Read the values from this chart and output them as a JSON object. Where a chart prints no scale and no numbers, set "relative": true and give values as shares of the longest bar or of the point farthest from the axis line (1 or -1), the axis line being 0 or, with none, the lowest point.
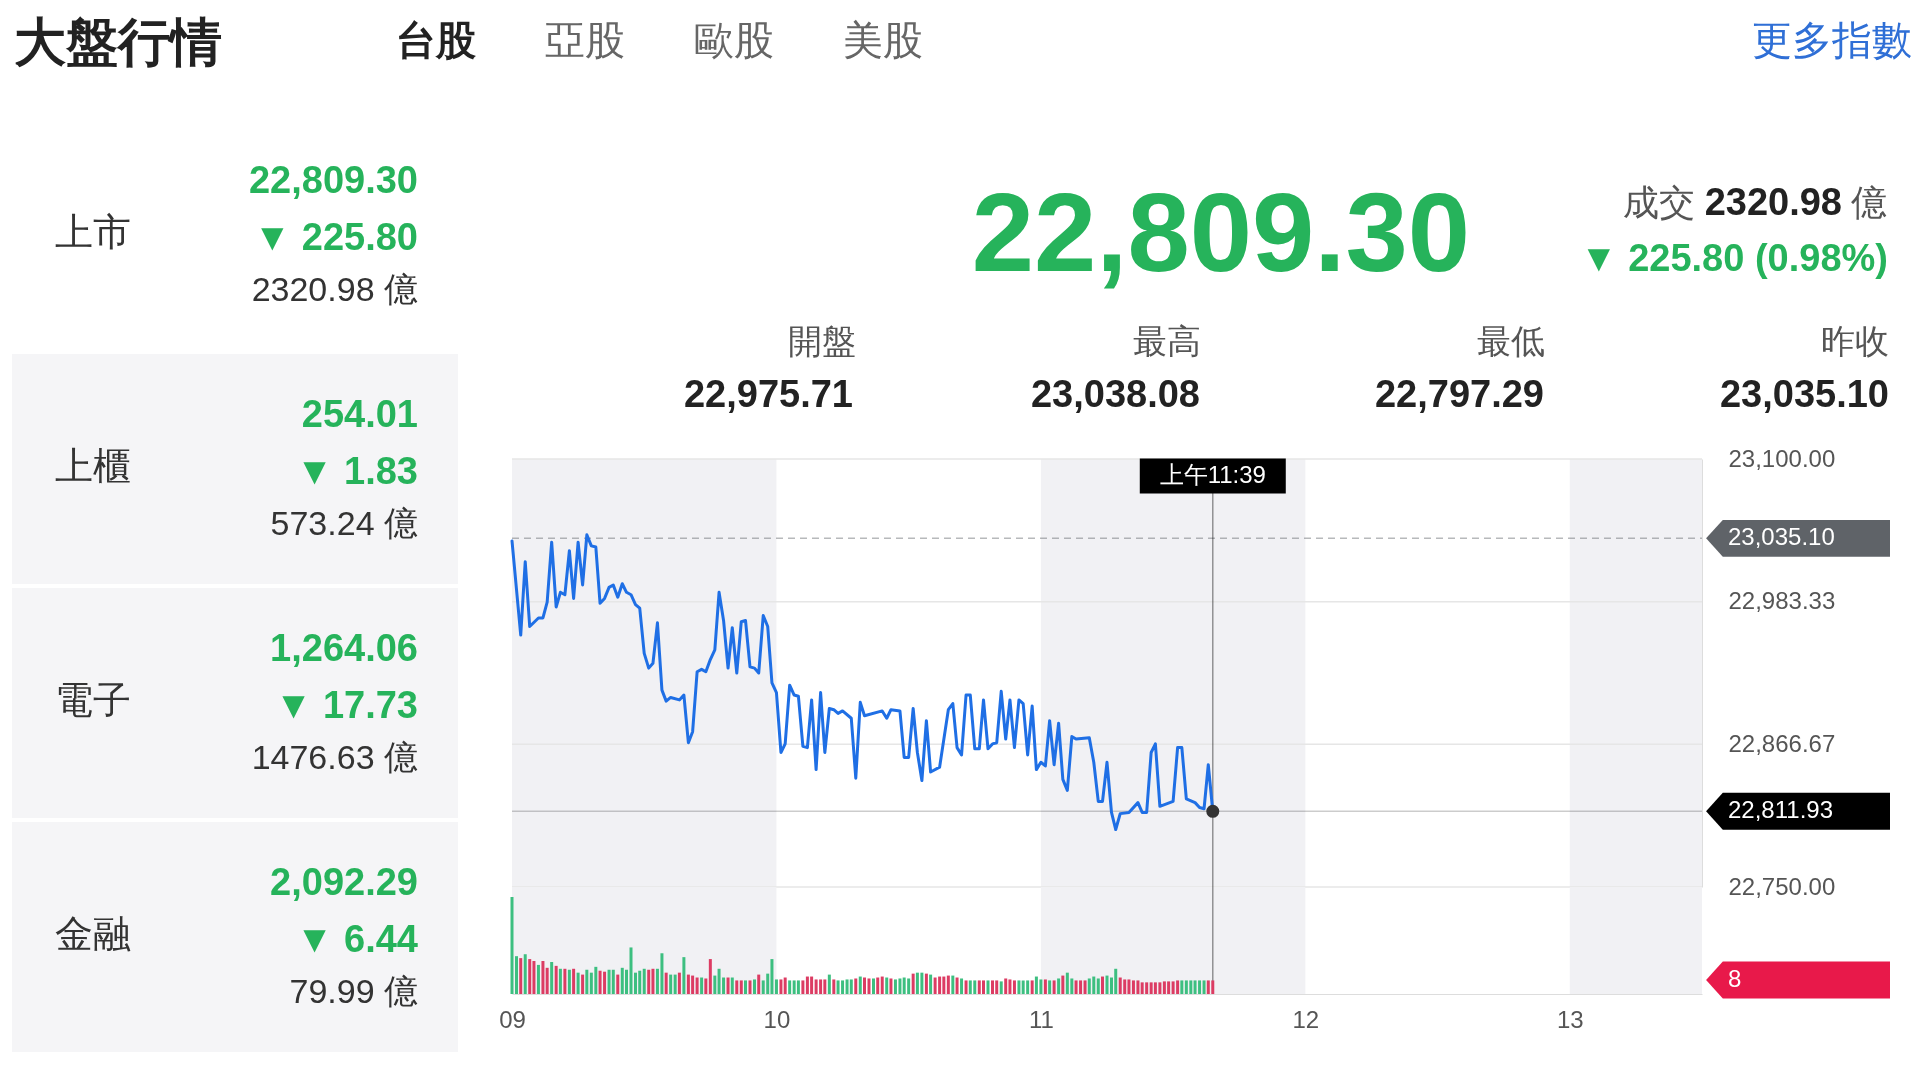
{
  "chart_data": [
    {
      "type": "other",
      "title": "大盤行情",
      "annotations": [
        "台股",
        "亞股",
        "歐股",
        "美股",
        "更多指數"
      ]
    },
    {
      "type": "other",
      "annotations": [
        "上市",
        "22,809.30",
        "▼ 225.80",
        "2320.98 億",
        "上櫃",
        "254.01",
        "▼ 1.83",
        "573.24 億",
        "電子",
        "1,264.06",
        "▼ 17.73",
        "1476.63 億",
        "金融",
        "2,092.29",
        "▼ 6.44",
        "79.99 億"
      ]
    },
    {
      "type": "other",
      "annotations": [
        "22,809.30",
        "成交",
        "2320.98",
        "億",
        "▼ 225.80 (0.98%)",
        "開盤",
        "最高",
        "最低",
        "昨收",
        "22,975.71",
        "23,038.08",
        "22,797.29",
        "23,035.10"
      ]
    },
    {
      "type": "line",
      "xlim": [
        9,
        13.5
      ],
      "ylim": [
        22750,
        23100
      ],
      "yticks": [
        {
          "value": 23100,
          "label": "23,100.00"
        },
        {
          "value": 22983.33,
          "label": "22,983.33"
        },
        {
          "value": 22866.67,
          "label": "22,866.67"
        },
        {
          "value": 22750,
          "label": "22,750.00"
        }
      ],
      "tick_labels": "y",
      "grid": "y",
      "bands": [
        {
          "axis": "x",
          "from": 9,
          "to": 10,
          "color": "#f1f1f4"
        },
        {
          "axis": "x",
          "from": 11,
          "to": 12,
          "color": "#f1f1f4"
        },
        {
          "axis": "x",
          "from": 13,
          "to": 13.5,
          "color": "#f1f1f4"
        }
      ],
      "ref_lines": [
        {
          "axis": "y",
          "value": 23035.1,
          "label": "23,035.10",
          "color": "#5f6368",
          "line_style": "dashed"
        },
        {
          "axis": "y",
          "value": 22811.93,
          "label": "22,811.93",
          "color": "#000000"
        },
        {
          "axis": "x",
          "value": 11.65,
          "color": "#000000"
        }
      ],
      "annotations": [
        {
          "text": "上午11:39",
          "x": 11.65
        }
      ],
      "series": [
        {
          "color": "#1f6fe5",
          "x": [
            9.0,
            9.033,
            9.05,
            9.067,
            9.1,
            9.117,
            9.133,
            9.15,
            9.167,
            9.183,
            9.2,
            9.217,
            9.233,
            9.25,
            9.267,
            9.283,
            9.3,
            9.317,
            9.333,
            9.35,
            9.367,
            9.383,
            9.4,
            9.417,
            9.433,
            9.45,
            9.467,
            9.483,
            9.5,
            9.517,
            9.533,
            9.55,
            9.567,
            9.583,
            9.6,
            9.633,
            9.65,
            9.667,
            9.683,
            9.7,
            9.717,
            9.733,
            9.75,
            9.767,
            9.783,
            9.8,
            9.817,
            9.833,
            9.85,
            9.867,
            9.883,
            9.9,
            9.917,
            9.933,
            9.95,
            9.967,
            9.983,
            10.0,
            10.017,
            10.033,
            10.05,
            10.067,
            10.083,
            10.1,
            10.117,
            10.133,
            10.15,
            10.167,
            10.183,
            10.2,
            10.217,
            10.233,
            10.25,
            10.283,
            10.3,
            10.317,
            10.333,
            10.4,
            10.417,
            10.433,
            10.467,
            10.483,
            10.5,
            10.517,
            10.533,
            10.55,
            10.567,
            10.583,
            10.617,
            10.65,
            10.667,
            10.683,
            10.7,
            10.717,
            10.733,
            10.75,
            10.767,
            10.783,
            10.8,
            10.817,
            10.833,
            10.85,
            10.867,
            10.883,
            10.9,
            10.917,
            10.933,
            10.95,
            10.967,
            10.983,
            11.0,
            11.017,
            11.033,
            11.05,
            11.067,
            11.083,
            11.1,
            11.117,
            11.133,
            11.183,
            11.2,
            11.217,
            11.233,
            11.25,
            11.267,
            11.283,
            11.3,
            11.333,
            11.367,
            11.383,
            11.4,
            11.417,
            11.433,
            11.45,
            11.5,
            11.517,
            11.533,
            11.55,
            11.583,
            11.6,
            11.617,
            11.633,
            11.65
          ],
          "values": [
            23033,
            22956,
            23016,
            22963,
            22970,
            22970,
            22983,
            23032,
            22979,
            22991,
            22989,
            23025,
            22986,
            23032,
            22997,
            23038,
            23029,
            23028,
            22982,
            22986,
            22995,
            22997,
            22987,
            22998,
            22991,
            22989,
            22981,
            22978,
            22941,
            22929,
            22933,
            22966,
            22911,
            22902,
            22905,
            22903,
            22907,
            22868,
            22877,
            22926,
            22928,
            22926,
            22936,
            22944,
            22991,
            22968,
            22929,
            22962,
            22925,
            22967,
            22968,
            22930,
            22929,
            22925,
            22972,
            22963,
            22917,
            22909,
            22860,
            22867,
            22915,
            22907,
            22906,
            22865,
            22864,
            22903,
            22846,
            22909,
            22860,
            22896,
            22895,
            22892,
            22894,
            22888,
            22839,
            22901,
            22890,
            22894,
            22888,
            22895,
            22894,
            22856,
            22856,
            22896,
            22860,
            22837,
            22886,
            22844,
            22848,
            22895,
            22900,
            22864,
            22858,
            22907,
            22907,
            22863,
            22863,
            22903,
            22863,
            22867,
            22868,
            22910,
            22871,
            22903,
            22864,
            22903,
            22900,
            22858,
            22898,
            22846,
            22852,
            22849,
            22886,
            22850,
            22884,
            22838,
            22829,
            22873,
            22871,
            22872,
            22852,
            22820,
            22820,
            22852,
            22811,
            22797,
            22810,
            22811,
            22819,
            22811,
            22811,
            22860,
            22867,
            22816,
            22820,
            22864,
            22864,
            22822,
            22819,
            22815,
            22814,
            22850,
            22811.93
          ]
        },
        {
          "type": "scatter",
          "color": "#333333",
          "x": [
            11.65
          ],
          "values": [
            22811.93
          ]
        }
      ]
    },
    {
      "type": "bar",
      "relative": true,
      "xlim": [
        9,
        13.5
      ],
      "xticks": [
        {
          "value": 9,
          "label": "09"
        },
        10,
        11,
        12,
        13
      ],
      "tick_labels": "x",
      "bands": [
        {
          "axis": "x",
          "from": 9,
          "to": 10,
          "color": "#f1f1f4"
        },
        {
          "axis": "x",
          "from": 11,
          "to": 12,
          "color": "#f1f1f4"
        },
        {
          "axis": "x",
          "from": 13,
          "to": 13.5,
          "color": "#f1f1f4"
        }
      ],
      "ref_lines": [
        {
          "axis": "x",
          "value": 11.65,
          "color": "#000000"
        }
      ],
      "annotations": [
        "8"
      ],
      "x": [
        9.0,
        9.017,
        9.033,
        9.05,
        9.067,
        9.083,
        9.1,
        9.117,
        9.133,
        9.15,
        9.167,
        9.183,
        9.2,
        9.217,
        9.233,
        9.25,
        9.267,
        9.283,
        9.3,
        9.317,
        9.333,
        9.35,
        9.367,
        9.383,
        9.4,
        9.417,
        9.433,
        9.45,
        9.467,
        9.483,
        9.5,
        9.517,
        9.533,
        9.55,
        9.567,
        9.583,
        9.6,
        9.617,
        9.633,
        9.65,
        9.667,
        9.683,
        9.7,
        9.717,
        9.733,
        9.75,
        9.767,
        9.783,
        9.8,
        9.817,
        9.833,
        9.85,
        9.867,
        9.883,
        9.9,
        9.917,
        9.933,
        9.95,
        9.967,
        9.983,
        10.0,
        10.017,
        10.033,
        10.05,
        10.067,
        10.083,
        10.1,
        10.117,
        10.133,
        10.15,
        10.167,
        10.183,
        10.2,
        10.217,
        10.233,
        10.25,
        10.267,
        10.283,
        10.3,
        10.317,
        10.333,
        10.35,
        10.367,
        10.383,
        10.4,
        10.417,
        10.433,
        10.45,
        10.467,
        10.483,
        10.5,
        10.517,
        10.533,
        10.55,
        10.567,
        10.583,
        10.6,
        10.617,
        10.633,
        10.65,
        10.667,
        10.683,
        10.7,
        10.717,
        10.733,
        10.75,
        10.767,
        10.783,
        10.8,
        10.817,
        10.833,
        10.85,
        10.867,
        10.883,
        10.9,
        10.917,
        10.933,
        10.95,
        10.967,
        10.983,
        11.0,
        11.017,
        11.033,
        11.05,
        11.067,
        11.083,
        11.1,
        11.117,
        11.133,
        11.15,
        11.167,
        11.183,
        11.2,
        11.217,
        11.233,
        11.25,
        11.267,
        11.283,
        11.3,
        11.317,
        11.333,
        11.35,
        11.367,
        11.383,
        11.4,
        11.417,
        11.433,
        11.45,
        11.467,
        11.483,
        11.5,
        11.517,
        11.533,
        11.55,
        11.567,
        11.583,
        11.6,
        11.617,
        11.633,
        11.65
      ],
      "values": [
        1,
        0.39,
        0.37,
        0.41,
        0.36,
        0.34,
        0.3,
        0.34,
        0.27,
        0.33,
        0.29,
        0.26,
        0.26,
        0.25,
        0.26,
        0.22,
        0.2,
        0.25,
        0.22,
        0.28,
        0.24,
        0.23,
        0.25,
        0.25,
        0.2,
        0.27,
        0.25,
        0.48,
        0.22,
        0.24,
        0.26,
        0.25,
        0.26,
        0.26,
        0.42,
        0.22,
        0.2,
        0.2,
        0.22,
        0.38,
        0.2,
        0.19,
        0.17,
        0.17,
        0.16,
        0.36,
        0.19,
        0.26,
        0.17,
        0.17,
        0.17,
        0.14,
        0.14,
        0.14,
        0.14,
        0.15,
        0.2,
        0.14,
        0.21,
        0.36,
        0.15,
        0.15,
        0.17,
        0.14,
        0.14,
        0.14,
        0.14,
        0.18,
        0.18,
        0.15,
        0.15,
        0.15,
        0.2,
        0.15,
        0.14,
        0.14,
        0.15,
        0.15,
        0.16,
        0.18,
        0.17,
        0.16,
        0.16,
        0.17,
        0.18,
        0.17,
        0.16,
        0.15,
        0.16,
        0.17,
        0.16,
        0.21,
        0.22,
        0.22,
        0.21,
        0.2,
        0.17,
        0.18,
        0.18,
        0.19,
        0.19,
        0.17,
        0.16,
        0.14,
        0.14,
        0.14,
        0.14,
        0.14,
        0.14,
        0.14,
        0.14,
        0.13,
        0.16,
        0.15,
        0.14,
        0.14,
        0.14,
        0.14,
        0.14,
        0.18,
        0.15,
        0.15,
        0.14,
        0.14,
        0.16,
        0.19,
        0.22,
        0.16,
        0.14,
        0.14,
        0.14,
        0.16,
        0.18,
        0.16,
        0.18,
        0.19,
        0.17,
        0.26,
        0.17,
        0.15,
        0.15,
        0.14,
        0.14,
        0.12,
        0.12,
        0.12,
        0.12,
        0.12,
        0.13,
        0.13,
        0.13,
        0.14,
        0.14,
        0.14,
        0.14,
        0.14,
        0.14,
        0.14,
        0.14,
        0.14
      ],
      "colors": [
        "#3dbf80",
        "#3dbf80",
        "#dc3c63",
        "#3dbf80",
        "#dc3c63",
        "#dc3c63",
        "#3dbf80",
        "#dc3c63",
        "#dc3c63",
        "#3dbf80",
        "#dc3c63",
        "#3dbf80",
        "#dc3c63",
        "#3dbf80",
        "#dc3c63",
        "#3dbf80",
        "#dc3c63",
        "#3dbf80",
        "#3dbf80",
        "#3dbf80",
        "#dc3c63",
        "#dc3c63",
        "#3dbf80",
        "#3dbf80",
        "#dc3c63",
        "#3dbf80",
        "#3dbf80",
        "#3dbf80",
        "#3dbf80",
        "#3dbf80",
        "#3dbf80",
        "#dc3c63",
        "#dc3c63",
        "#3dbf80",
        "#3dbf80",
        "#dc3c63",
        "#3dbf80",
        "#3dbf80",
        "#dc3c63",
        "#3dbf80",
        "#dc3c63",
        "#dc3c63",
        "#dc3c63",
        "#3dbf80",
        "#dc3c63",
        "#dc3c63",
        "#3dbf80",
        "#3dbf80",
        "#3dbf80",
        "#dc3c63",
        "#3dbf80",
        "#dc3c63",
        "#dc3c63",
        "#3dbf80",
        "#dc3c63",
        "#3dbf80",
        "#dc3c63",
        "#3dbf80",
        "#3dbf80",
        "#3dbf80",
        "#3dbf80",
        "#dc3c63",
        "#dc3c63",
        "#3dbf80",
        "#3dbf80",
        "#3dbf80",
        "#dc3c63",
        "#dc3c63",
        "#dc3c63",
        "#dc3c63",
        "#dc3c63",
        "#dc3c63",
        "#3dbf80",
        "#dc3c63",
        "#3dbf80",
        "#3dbf80",
        "#3dbf80",
        "#3dbf80",
        "#dc3c63",
        "#3dbf80",
        "#dc3c63",
        "#dc3c63",
        "#3dbf80",
        "#dc3c63",
        "#dc3c63",
        "#3dbf80",
        "#dc3c63",
        "#3dbf80",
        "#3dbf80",
        "#3dbf80",
        "#3dbf80",
        "#dc3c63",
        "#3dbf80",
        "#3dbf80",
        "#dc3c63",
        "#3dbf80",
        "#dc3c63",
        "#dc3c63",
        "#dc3c63",
        "#dc3c63",
        "#3dbf80",
        "#dc3c63",
        "#3dbf80",
        "#dc3c63",
        "#3dbf80",
        "#3dbf80",
        "#dc3c63",
        "#dc3c63",
        "#3dbf80",
        "#dc3c63",
        "#dc3c63",
        "#3dbf80",
        "#dc3c63",
        "#dc3c63",
        "#dc3c63",
        "#3dbf80",
        "#3dbf80",
        "#3dbf80",
        "#dc3c63",
        "#3dbf80",
        "#3dbf80",
        "#dc3c63",
        "#3dbf80",
        "#dc3c63",
        "#3dbf80",
        "#dc3c63",
        "#3dbf80",
        "#3dbf80",
        "#dc3c63",
        "#dc3c63",
        "#dc3c63",
        "#3dbf80",
        "#3dbf80",
        "#3dbf80",
        "#dc3c63",
        "#3dbf80",
        "#3dbf80",
        "#3dbf80",
        "#dc3c63",
        "#dc3c63",
        "#dc3c63",
        "#dc3c63",
        "#dc3c63",
        "#dc3c63",
        "#dc3c63",
        "#dc3c63",
        "#dc3c63",
        "#dc3c63",
        "#dc3c63",
        "#dc3c63",
        "#dc3c63",
        "#dc3c63",
        "#3dbf80",
        "#3dbf80",
        "#3dbf80",
        "#3dbf80",
        "#3dbf80",
        "#3dbf80",
        "#dc3c63",
        "#dc3c63"
      ]
    }
  ]
}
